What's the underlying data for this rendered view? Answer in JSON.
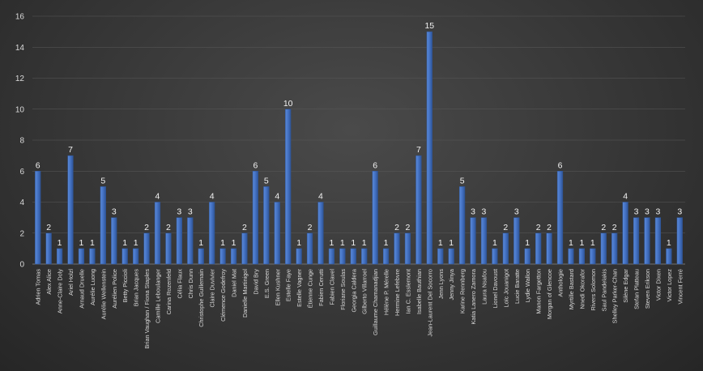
{
  "chart_data": {
    "type": "bar",
    "title": "",
    "xlabel": "",
    "ylabel": "",
    "ylim": [
      0,
      16
    ],
    "yticks": [
      0,
      2,
      4,
      6,
      8,
      10,
      12,
      14,
      16
    ],
    "grid": true,
    "legend": "none",
    "categories": [
      "Adrien Tomas",
      "Alex Alice",
      "Anne-Claire Doly",
      "Ariel Holzl",
      "Arnaud Druelle",
      "Aurélie Luong",
      "Aurélie Wellenstein",
      "Aurélien Police",
      "Betty Piccioli",
      "Brian Jacques",
      "Brian Vaughan / Fiona Staples",
      "Camille Leboulanger",
      "Carina Rozenfeld",
      "Célia Flaux",
      "Chris Dunn",
      "Christophe Guillemain",
      "Claire Duvivier",
      "Clémence Godefroy",
      "Daniel Mat",
      "Danielle Martinigol",
      "David Bry",
      "E.S. Green",
      "Ellen Kushner",
      "Estelle Faye",
      "Estelle Vagner",
      "Étienne Cunge",
      "Fabien Cerutti",
      "Fabien Clavel",
      "Floriane Soulas",
      "Georgia Caldera",
      "Gilberto Villarroel",
      "Guillaume Chamanadjian",
      "Hélène P. Mérelle",
      "Hermine Lefebvre",
      "Ian C. Esslemont",
      "Isabelle Bauthian",
      "Jean-Laurent Del Socorro",
      "Jenn Lyons",
      "Jenny Jinya",
      "Karine Rennberg",
      "Katia Lanero Zamora",
      "Laura Nsafou",
      "Lionel Davoust",
      "Loïc Jouanigot",
      "Lucie Baratte",
      "Lydie Wallon",
      "Manon Fargetton",
      "Morgan of Glencoe",
      "Anthologie",
      "Myrtille Bastard",
      "Nnedi Okorafor",
      "Rivers Solomon",
      "Saul Pandelakis",
      "Shelley Parker-Chan",
      "Silène Edgar",
      "Stefan Platteau",
      "Steven Erikson",
      "Victor Dixen",
      "Victor Lopez",
      "Vincent Ferré"
    ],
    "values": [
      6,
      2,
      1,
      7,
      1,
      1,
      5,
      3,
      1,
      1,
      2,
      4,
      2,
      3,
      3,
      1,
      4,
      1,
      1,
      2,
      6,
      5,
      4,
      10,
      1,
      2,
      4,
      1,
      1,
      1,
      1,
      6,
      1,
      2,
      2,
      7,
      15,
      1,
      1,
      5,
      3,
      3,
      1,
      2,
      3,
      1,
      2,
      2,
      6,
      1,
      1,
      1,
      2,
      2,
      4,
      3,
      3,
      3,
      1,
      3
    ],
    "colors": {
      "bar_fill": "#4472c4",
      "bar_edge": "#2f5597",
      "axis_text": "#d9d9d9",
      "label_text": "#f2f2f2",
      "gridline": "#595959"
    }
  }
}
